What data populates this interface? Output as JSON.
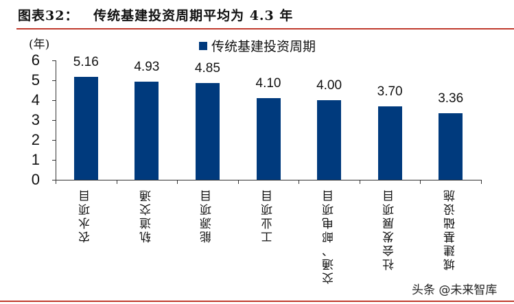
{
  "header": {
    "figure_label": "图表32：",
    "title_text": "传统基建投资周期平均为 4.3 年"
  },
  "watermark": "头条 @未来智库",
  "colors": {
    "bar": "#003a7d",
    "rule": "#c0392b"
  },
  "chart_data": {
    "type": "bar",
    "title": "图表32： 传统基建投资周期平均为 4.3 年",
    "xlabel": "",
    "ylabel": "(年)",
    "ylim": [
      0,
      6
    ],
    "yticks": [
      "0",
      "1",
      "2",
      "3",
      "4",
      "5",
      "6"
    ],
    "grid": false,
    "legend_position": "top",
    "categories": [
      "农水项目",
      "轨道交通",
      "能源项目",
      "工业项目",
      "交通、邮电项目",
      "社会发展项目",
      "城建基础设施"
    ],
    "series": [
      {
        "name": "传统基建投资周期",
        "values": [
          5.16,
          4.93,
          4.85,
          4.1,
          4.0,
          3.7,
          3.36
        ]
      }
    ],
    "value_labels": [
      "5.16",
      "4.93",
      "4.85",
      "4.10",
      "4.00",
      "3.70",
      "3.36"
    ]
  }
}
